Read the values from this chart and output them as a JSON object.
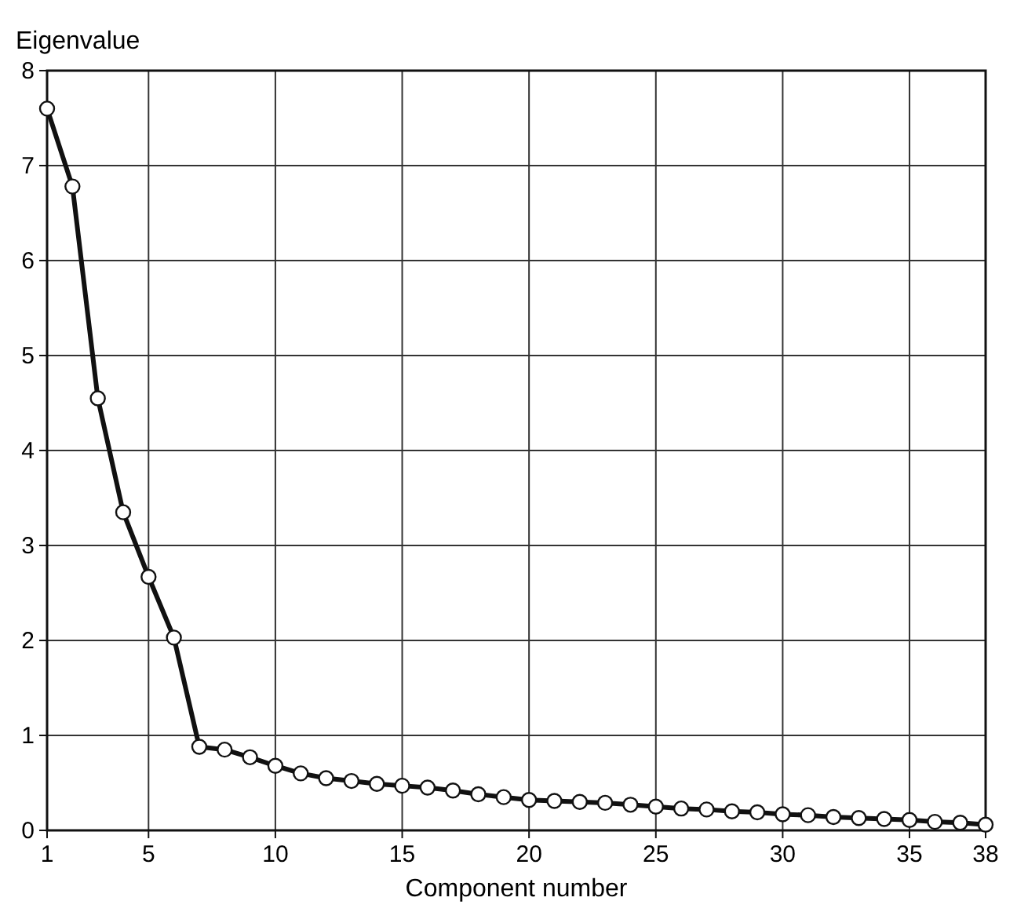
{
  "chart_data": {
    "type": "line",
    "xlabel": "Component number",
    "ylabel": "Eigenvalue",
    "x": [
      1,
      2,
      3,
      4,
      5,
      6,
      7,
      8,
      9,
      10,
      11,
      12,
      13,
      14,
      15,
      16,
      17,
      18,
      19,
      20,
      21,
      22,
      23,
      24,
      25,
      26,
      27,
      28,
      29,
      30,
      31,
      32,
      33,
      34,
      35,
      36,
      37,
      38
    ],
    "series": [
      {
        "color": "#111111",
        "values": [
          7.6,
          6.78,
          4.55,
          3.35,
          2.67,
          2.03,
          0.88,
          0.85,
          0.77,
          0.68,
          0.6,
          0.55,
          0.52,
          0.49,
          0.47,
          0.45,
          0.42,
          0.38,
          0.35,
          0.32,
          0.31,
          0.3,
          0.29,
          0.27,
          0.25,
          0.23,
          0.22,
          0.2,
          0.19,
          0.17,
          0.16,
          0.14,
          0.13,
          0.12,
          0.11,
          0.09,
          0.08,
          0.06
        ]
      }
    ],
    "xlim": [
      1,
      38
    ],
    "xticks": [
      1,
      5,
      10,
      15,
      20,
      25,
      30,
      35,
      38
    ],
    "ylim": [
      0,
      8
    ],
    "yticks": [
      0,
      1,
      2,
      3,
      4,
      5,
      6,
      7,
      8
    ],
    "grid": true,
    "marker": "circle",
    "line_style": "solid"
  }
}
